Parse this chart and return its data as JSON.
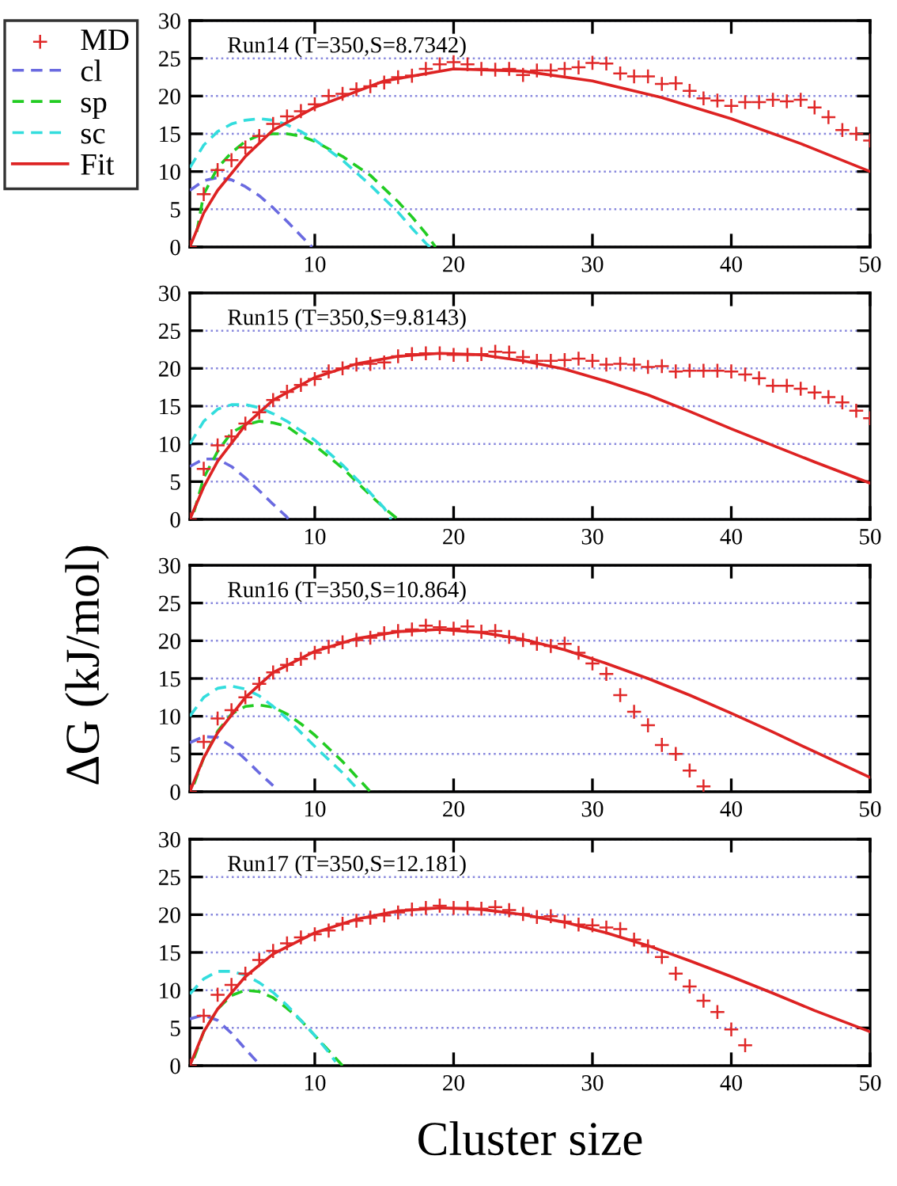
{
  "chart_data": [
    {
      "type": "line",
      "annotations": [
        "Run14 (T=350,S=8.7342)"
      ],
      "xlim": [
        1,
        50
      ],
      "xticks": [
        10,
        20,
        30,
        40,
        50
      ],
      "ylim": [
        0,
        30
      ],
      "yticks": [
        0,
        5,
        10,
        15,
        20,
        25,
        30
      ],
      "grid": "y",
      "legend": "left",
      "series": [
        {
          "name": "MD",
          "type": "scatter",
          "marker": "cross",
          "color": "#e02828",
          "x": [
            1,
            2,
            3,
            4,
            5,
            6,
            7,
            8,
            9,
            10,
            11,
            12,
            13,
            14,
            15,
            16,
            17,
            18,
            19,
            20,
            21,
            22,
            23,
            24,
            25,
            26,
            27,
            28,
            29,
            30,
            31,
            32,
            33,
            34,
            35,
            36,
            37,
            38,
            39,
            40,
            41,
            42,
            43,
            44,
            45,
            46,
            47,
            48,
            49,
            50
          ],
          "values": [
            0,
            7,
            10.2,
            11.5,
            13.2,
            14.7,
            16.3,
            17.3,
            18,
            18.9,
            20,
            20.3,
            20.9,
            21.3,
            21.8,
            22.5,
            22.7,
            23.6,
            24.2,
            24.5,
            24.2,
            23.6,
            23.5,
            23.6,
            22.8,
            23.4,
            23.4,
            23.6,
            23.8,
            24.4,
            24.3,
            23,
            22.6,
            22.6,
            21.6,
            21.7,
            20.7,
            19.7,
            19.4,
            18.7,
            19.2,
            19.2,
            19.5,
            19.3,
            19.5,
            18.5,
            17.2,
            15.5,
            15,
            14.1
          ]
        },
        {
          "name": "cl",
          "type": "line",
          "line_style": "dashed",
          "color": "#6a6ae0",
          "x": [
            1,
            2,
            3,
            4,
            5,
            6,
            7,
            8,
            9,
            9.8
          ],
          "values": [
            7.5,
            8.8,
            9.2,
            8.9,
            8,
            6.8,
            5.2,
            3.4,
            1.5,
            0
          ]
        },
        {
          "name": "sp",
          "type": "line",
          "line_style": "dashed",
          "color": "#22cc22",
          "x": [
            1.5,
            2,
            3,
            4,
            5,
            6,
            7,
            8,
            9,
            10,
            12,
            14,
            16,
            17,
            18,
            18.7
          ],
          "values": [
            2,
            7,
            10.5,
            12.5,
            14,
            14.8,
            15,
            15,
            14.7,
            14,
            12,
            9.5,
            6,
            4,
            1.8,
            0
          ]
        },
        {
          "name": "sc",
          "type": "line",
          "line_style": "dashed",
          "color": "#33dddd",
          "x": [
            1,
            2,
            3,
            4,
            5,
            6,
            7,
            8,
            9,
            10,
            12,
            14,
            16,
            17,
            18,
            18.3
          ],
          "values": [
            10.5,
            13.5,
            15.3,
            16.3,
            16.8,
            17,
            16.8,
            16.2,
            15.3,
            14.2,
            11.5,
            8.2,
            4.6,
            2.5,
            0.5,
            0
          ]
        },
        {
          "name": "Fit",
          "type": "line",
          "line_style": "solid",
          "color": "#dd2222",
          "x": [
            1,
            2,
            3,
            5,
            7,
            10,
            15,
            20,
            25,
            30,
            35,
            40,
            45,
            50
          ],
          "values": [
            0,
            4.5,
            7.5,
            12,
            15.5,
            18.5,
            22,
            23.6,
            23.3,
            22,
            19.8,
            17,
            13.7,
            10
          ]
        }
      ]
    },
    {
      "type": "line",
      "annotations": [
        "Run15 (T=350,S=9.8143)"
      ],
      "ylabel": "ΔG (kJ/mol)",
      "xlim": [
        1,
        50
      ],
      "xticks": [
        10,
        20,
        30,
        40,
        50
      ],
      "ylim": [
        0,
        30
      ],
      "yticks": [
        0,
        5,
        10,
        15,
        20,
        25,
        30
      ],
      "grid": "y",
      "series": [
        {
          "type": "scatter",
          "marker": "cross",
          "color": "#e02828",
          "x": [
            1,
            2,
            3,
            4,
            5,
            6,
            7,
            8,
            9,
            10,
            11,
            12,
            13,
            14,
            15,
            16,
            17,
            18,
            19,
            20,
            21,
            22,
            23,
            24,
            25,
            26,
            27,
            28,
            29,
            30,
            31,
            32,
            33,
            34,
            35,
            36,
            37,
            38,
            39,
            40,
            41,
            42,
            43,
            44,
            45,
            46,
            47,
            48,
            49,
            50
          ],
          "values": [
            0,
            6.7,
            9.8,
            11,
            12.7,
            14.2,
            15.8,
            16.9,
            17.8,
            18.6,
            19.6,
            20,
            20.5,
            20.6,
            20.8,
            21.6,
            21.9,
            22,
            22,
            21.8,
            21.8,
            21.9,
            22.2,
            22.1,
            21.5,
            21,
            21,
            21.1,
            21.3,
            21,
            20.5,
            20.6,
            20.5,
            20.2,
            20.3,
            19.6,
            19.7,
            19.7,
            19.7,
            19.6,
            19.2,
            18.7,
            17.7,
            17.7,
            17.3,
            16.8,
            16.2,
            15.5,
            14.4,
            13.4
          ]
        },
        {
          "type": "line",
          "line_style": "dashed",
          "color": "#6a6ae0",
          "x": [
            1,
            2,
            3,
            4,
            5,
            6,
            7,
            8,
            8.1
          ],
          "values": [
            7,
            8,
            8,
            7,
            5.5,
            3.8,
            2,
            0.3,
            0
          ]
        },
        {
          "type": "line",
          "line_style": "dashed",
          "color": "#22cc22",
          "x": [
            1.3,
            2,
            3,
            4,
            5,
            6,
            7,
            8,
            9,
            10,
            12,
            14,
            15,
            16
          ],
          "values": [
            1,
            5.5,
            9,
            11.5,
            12.5,
            13,
            12.8,
            12.3,
            11,
            9.8,
            6.8,
            3.2,
            1.5,
            0
          ]
        },
        {
          "type": "line",
          "line_style": "dashed",
          "color": "#33dddd",
          "x": [
            1,
            2,
            3,
            4,
            5,
            6,
            7,
            8,
            10,
            12,
            14,
            15,
            15.5
          ],
          "values": [
            10,
            13,
            14.6,
            15.2,
            15.2,
            14.8,
            14,
            13,
            10.5,
            7.2,
            3.5,
            1.5,
            0
          ]
        },
        {
          "type": "line",
          "line_style": "solid",
          "color": "#dd2222",
          "x": [
            1,
            2,
            3,
            5,
            7,
            10,
            13,
            16,
            19,
            22,
            25,
            28,
            31,
            34,
            37,
            40,
            43,
            46,
            50
          ],
          "values": [
            0,
            4.3,
            7.7,
            12.5,
            15.8,
            18.8,
            20.6,
            21.6,
            22,
            21.8,
            21,
            19.9,
            18.3,
            16.5,
            14.3,
            12,
            9.8,
            7.6,
            4.8
          ]
        }
      ]
    },
    {
      "type": "line",
      "annotations": [
        "Run16 (T=350,S=10.864)"
      ],
      "xlim": [
        1,
        50
      ],
      "xticks": [
        10,
        20,
        30,
        40,
        50
      ],
      "ylim": [
        0,
        30
      ],
      "yticks": [
        0,
        5,
        10,
        15,
        20,
        25,
        30
      ],
      "grid": "y",
      "series": [
        {
          "type": "scatter",
          "marker": "cross",
          "color": "#e02828",
          "x": [
            1,
            2,
            3,
            4,
            5,
            6,
            7,
            8,
            9,
            10,
            11,
            12,
            13,
            14,
            15,
            16,
            17,
            18,
            19,
            20,
            21,
            22,
            23,
            24,
            25,
            26,
            27,
            28,
            29,
            30,
            31,
            32,
            33,
            34,
            35,
            36,
            37,
            38
          ],
          "values": [
            0,
            6.6,
            9.7,
            10.8,
            12.5,
            14.3,
            15.8,
            16.8,
            17.6,
            18.4,
            19.2,
            19.8,
            20.1,
            20.4,
            21,
            21.3,
            21.5,
            22,
            21.8,
            21.6,
            21.9,
            21.2,
            21.3,
            20.5,
            20.1,
            19.6,
            19.3,
            19.6,
            18.4,
            17,
            15.6,
            12.8,
            10.6,
            8.8,
            6.2,
            5,
            2.8,
            0.7
          ]
        },
        {
          "type": "line",
          "line_style": "dashed",
          "color": "#6a6ae0",
          "x": [
            1,
            2,
            3,
            4,
            5,
            6,
            7
          ],
          "values": [
            6.5,
            7.3,
            7.2,
            6,
            4.3,
            2.5,
            0.8
          ]
        },
        {
          "type": "line",
          "line_style": "dashed",
          "color": "#22cc22",
          "x": [
            1.3,
            2,
            3,
            4,
            5,
            6,
            7,
            8,
            9,
            10,
            12,
            13,
            14
          ],
          "values": [
            1,
            4.5,
            8,
            10.3,
            11.3,
            11.5,
            11.2,
            10.3,
            9,
            7.5,
            4,
            2,
            0
          ]
        },
        {
          "type": "line",
          "line_style": "dashed",
          "color": "#33dddd",
          "x": [
            1,
            2,
            3,
            4,
            5,
            6,
            7,
            8,
            10,
            12,
            13
          ],
          "values": [
            10,
            12.5,
            13.7,
            14,
            13.6,
            12.7,
            11.3,
            9.7,
            6,
            2.5,
            0.5
          ]
        },
        {
          "type": "line",
          "line_style": "solid",
          "color": "#dd2222",
          "x": [
            1,
            2,
            3,
            5,
            7,
            10,
            13,
            16,
            19,
            22,
            25,
            28,
            31,
            34,
            37,
            40,
            43,
            46,
            50
          ],
          "values": [
            0,
            4.5,
            7.8,
            12.5,
            15.8,
            18.6,
            20.3,
            21.2,
            21.5,
            21.1,
            20.2,
            18.8,
            17,
            15,
            12.8,
            10.4,
            7.9,
            5.3,
            1.9
          ]
        }
      ]
    },
    {
      "type": "line",
      "annotations": [
        "Run17 (T=350,S=12.181)"
      ],
      "xlabel": "Cluster size",
      "xlim": [
        1,
        50
      ],
      "xticks": [
        10,
        20,
        30,
        40,
        50
      ],
      "ylim": [
        0,
        30
      ],
      "yticks": [
        0,
        5,
        10,
        15,
        20,
        25,
        30
      ],
      "grid": "y",
      "series": [
        {
          "type": "scatter",
          "marker": "cross",
          "color": "#e02828",
          "x": [
            1,
            2,
            3,
            4,
            5,
            6,
            7,
            8,
            9,
            10,
            11,
            12,
            13,
            14,
            15,
            16,
            17,
            18,
            19,
            20,
            21,
            22,
            23,
            24,
            25,
            26,
            27,
            28,
            29,
            30,
            31,
            32,
            33,
            34,
            35,
            36,
            37,
            38,
            39,
            40,
            41
          ],
          "values": [
            0,
            6.6,
            9.4,
            10.7,
            12.2,
            14,
            15.2,
            16.2,
            17,
            17.4,
            17.9,
            18.8,
            19.2,
            19.6,
            19.9,
            20.3,
            20.7,
            20.9,
            21.2,
            20.9,
            20.9,
            20.8,
            21,
            20.6,
            20.1,
            19.7,
            19.8,
            19.1,
            18.7,
            18.6,
            18.3,
            18.1,
            16.7,
            15.8,
            14.4,
            12.2,
            10.5,
            8.6,
            7.1,
            4.8,
            2.7
          ]
        },
        {
          "type": "line",
          "line_style": "dashed",
          "color": "#6a6ae0",
          "x": [
            1,
            2,
            3,
            4,
            5,
            6
          ],
          "values": [
            6.2,
            6.7,
            6,
            4.3,
            2.2,
            0.2
          ]
        },
        {
          "type": "line",
          "line_style": "dashed",
          "color": "#22cc22",
          "x": [
            1.3,
            2,
            3,
            4,
            5,
            6,
            7,
            8,
            9,
            10,
            11,
            12
          ],
          "values": [
            1,
            4.5,
            7.5,
            9.3,
            10,
            9.8,
            9,
            7.6,
            6,
            4,
            2,
            0
          ]
        },
        {
          "type": "line",
          "line_style": "dashed",
          "color": "#33dddd",
          "x": [
            1,
            2,
            3,
            4,
            5,
            6,
            7,
            8,
            9,
            10,
            11,
            11.5
          ],
          "values": [
            9.5,
            11.5,
            12.5,
            12.5,
            12,
            11,
            9.7,
            8,
            6,
            4,
            1.8,
            0.5
          ]
        },
        {
          "type": "line",
          "line_style": "solid",
          "color": "#dd2222",
          "x": [
            1,
            2,
            3,
            5,
            7,
            10,
            13,
            16,
            19,
            22,
            25,
            28,
            31,
            34,
            37,
            40,
            43,
            46,
            50
          ],
          "values": [
            0,
            4.5,
            7.5,
            11.8,
            14.8,
            17.6,
            19.4,
            20.5,
            20.9,
            20.7,
            20,
            19,
            17.6,
            15.9,
            13.9,
            11.8,
            9.6,
            7.3,
            4.5
          ]
        }
      ]
    }
  ]
}
